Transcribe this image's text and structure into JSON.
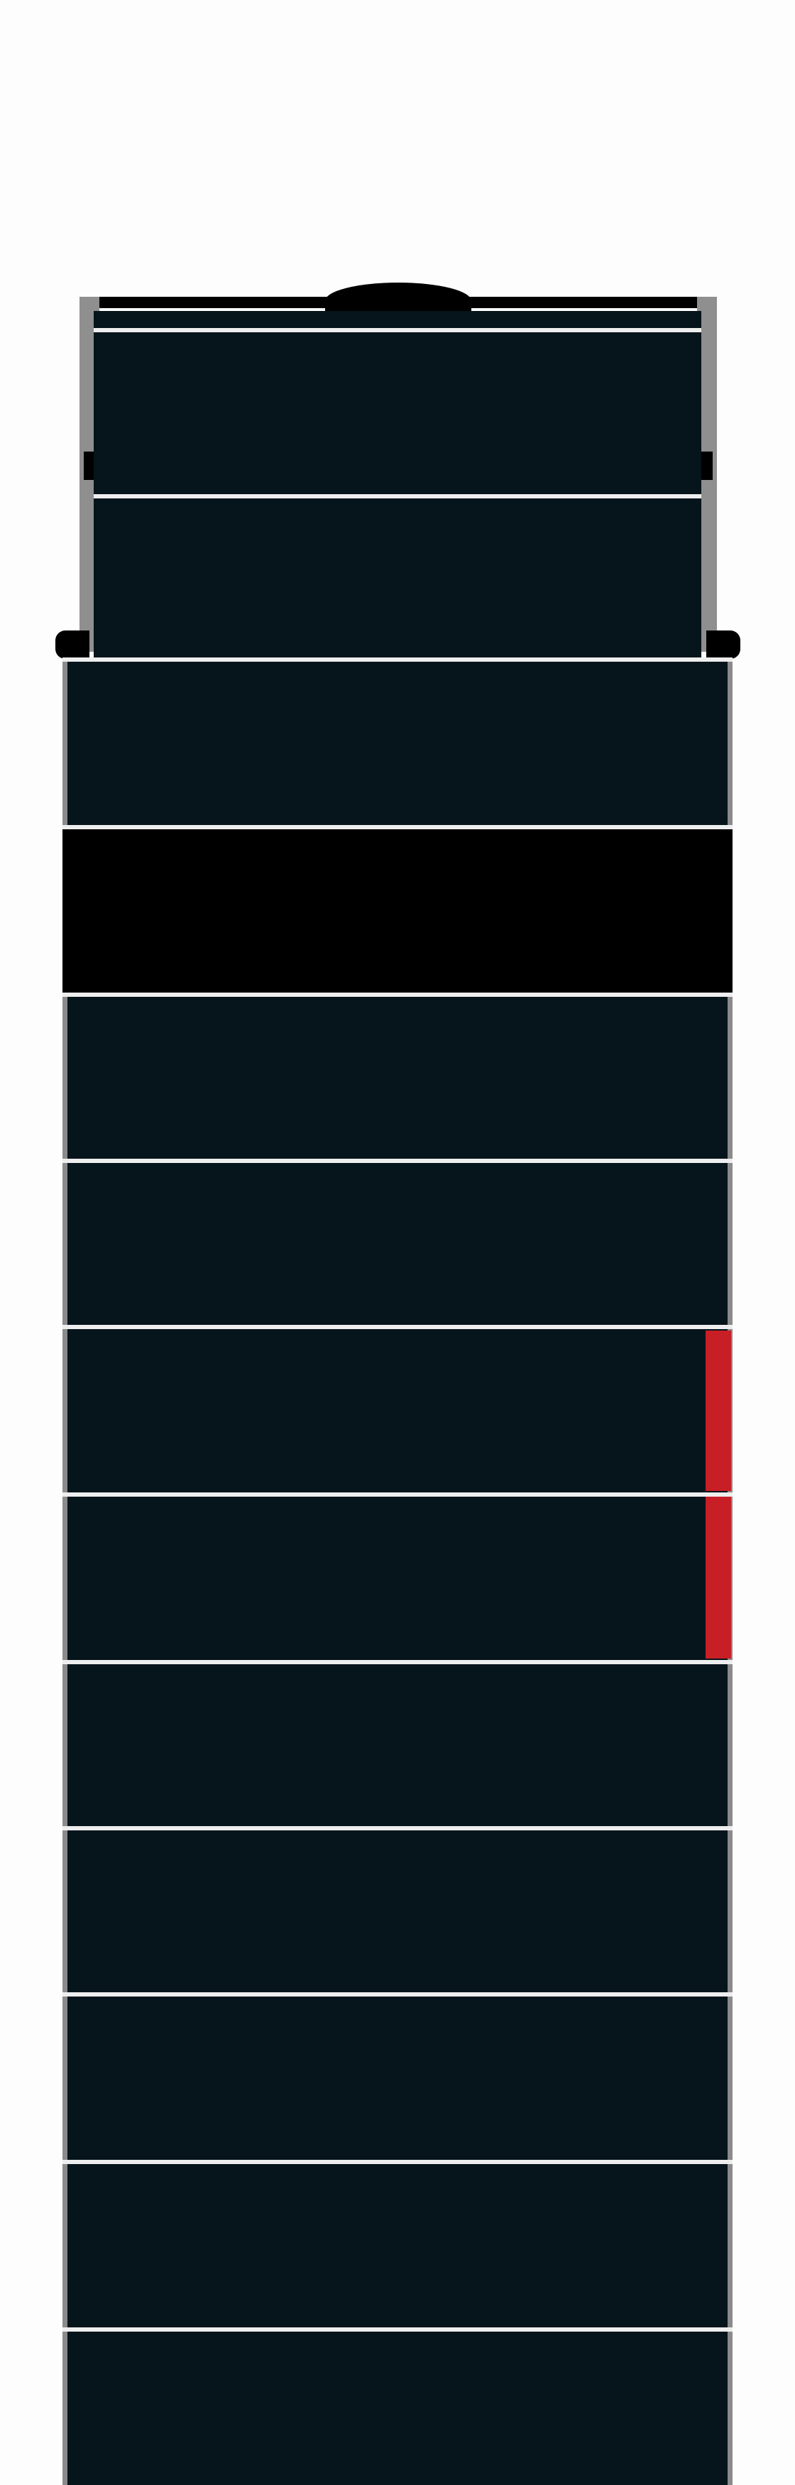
{
  "scene": {
    "type": "building-tower",
    "colors": {
      "background": "#fdfdfd",
      "tower": "#06141b",
      "dark_band": "#000000",
      "divider": "#eeeeee",
      "trim": "#8b8b8b",
      "marker": "#c81e25"
    }
  }
}
